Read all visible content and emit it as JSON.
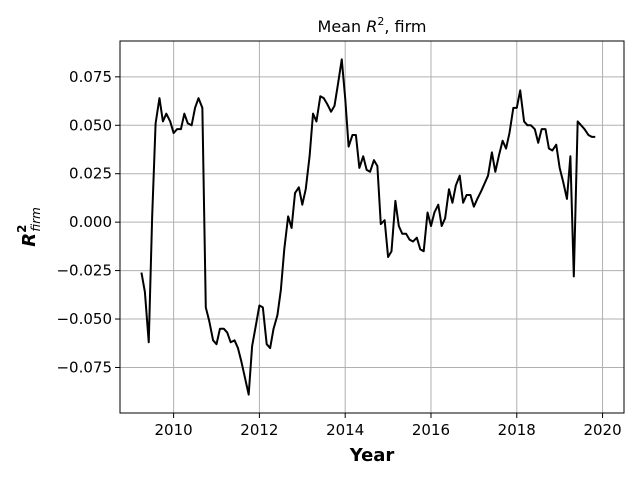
{
  "chart_data": {
    "type": "line",
    "title": "Mean R², firm",
    "title_parts": {
      "prefix": "Mean ",
      "symbol": "R",
      "superscript": "2",
      "suffix": ", firm"
    },
    "xlabel": "Year",
    "ylabel": "R²firm",
    "ylabel_parts": {
      "symbol": "R",
      "superscript": "2",
      "subscript": "firm"
    },
    "xlim": [
      2008.75,
      2020.5
    ],
    "ylim": [
      -0.0985,
      0.0935
    ],
    "grid": true,
    "xticks": [
      2010,
      2012,
      2014,
      2016,
      2018,
      2020
    ],
    "xtick_labels": [
      "2010",
      "2012",
      "2014",
      "2016",
      "2018",
      "2020"
    ],
    "yticks": [
      0.075,
      0.05,
      0.025,
      0.0,
      -0.025,
      -0.05,
      -0.075
    ],
    "ytick_labels": [
      "0.075",
      "0.050",
      "0.025",
      "0.000",
      "−0.025",
      "−0.050",
      "−0.075"
    ],
    "series": [
      {
        "color": "#000000",
        "points": [
          [
            2009.25,
            -0.026
          ],
          [
            2009.33,
            -0.036
          ],
          [
            2009.42,
            -0.062
          ],
          [
            2009.5,
            0.003
          ],
          [
            2009.58,
            0.051
          ],
          [
            2009.67,
            0.064
          ],
          [
            2009.75,
            0.052
          ],
          [
            2009.83,
            0.056
          ],
          [
            2009.92,
            0.052
          ],
          [
            2010.0,
            0.046
          ],
          [
            2010.08,
            0.048
          ],
          [
            2010.17,
            0.048
          ],
          [
            2010.25,
            0.056
          ],
          [
            2010.33,
            0.051
          ],
          [
            2010.42,
            0.05
          ],
          [
            2010.5,
            0.059
          ],
          [
            2010.58,
            0.064
          ],
          [
            2010.67,
            0.059
          ],
          [
            2010.75,
            -0.044
          ],
          [
            2010.83,
            -0.051
          ],
          [
            2010.92,
            -0.061
          ],
          [
            2011.0,
            -0.063
          ],
          [
            2011.08,
            -0.055
          ],
          [
            2011.17,
            -0.055
          ],
          [
            2011.25,
            -0.057
          ],
          [
            2011.33,
            -0.062
          ],
          [
            2011.42,
            -0.061
          ],
          [
            2011.5,
            -0.065
          ],
          [
            2011.58,
            -0.072
          ],
          [
            2011.67,
            -0.081
          ],
          [
            2011.75,
            -0.089
          ],
          [
            2011.83,
            -0.064
          ],
          [
            2011.92,
            -0.053
          ],
          [
            2012.0,
            -0.043
          ],
          [
            2012.08,
            -0.044
          ],
          [
            2012.17,
            -0.063
          ],
          [
            2012.25,
            -0.065
          ],
          [
            2012.33,
            -0.055
          ],
          [
            2012.42,
            -0.048
          ],
          [
            2012.5,
            -0.035
          ],
          [
            2012.58,
            -0.014
          ],
          [
            2012.67,
            0.003
          ],
          [
            2012.75,
            -0.003
          ],
          [
            2012.83,
            0.015
          ],
          [
            2012.92,
            0.018
          ],
          [
            2013.0,
            0.009
          ],
          [
            2013.08,
            0.017
          ],
          [
            2013.17,
            0.034
          ],
          [
            2013.25,
            0.056
          ],
          [
            2013.33,
            0.052
          ],
          [
            2013.42,
            0.065
          ],
          [
            2013.5,
            0.064
          ],
          [
            2013.58,
            0.061
          ],
          [
            2013.67,
            0.057
          ],
          [
            2013.75,
            0.06
          ],
          [
            2013.83,
            0.071
          ],
          [
            2013.92,
            0.084
          ],
          [
            2014.0,
            0.064
          ],
          [
            2014.08,
            0.039
          ],
          [
            2014.17,
            0.045
          ],
          [
            2014.25,
            0.045
          ],
          [
            2014.33,
            0.028
          ],
          [
            2014.42,
            0.034
          ],
          [
            2014.5,
            0.027
          ],
          [
            2014.58,
            0.026
          ],
          [
            2014.67,
            0.032
          ],
          [
            2014.75,
            0.029
          ],
          [
            2014.83,
            -0.001
          ],
          [
            2014.92,
            0.001
          ],
          [
            2015.0,
            -0.018
          ],
          [
            2015.08,
            -0.015
          ],
          [
            2015.17,
            0.011
          ],
          [
            2015.25,
            -0.002
          ],
          [
            2015.33,
            -0.006
          ],
          [
            2015.42,
            -0.006
          ],
          [
            2015.5,
            -0.009
          ],
          [
            2015.58,
            -0.01
          ],
          [
            2015.67,
            -0.008
          ],
          [
            2015.75,
            -0.014
          ],
          [
            2015.83,
            -0.015
          ],
          [
            2015.92,
            0.005
          ],
          [
            2016.0,
            -0.002
          ],
          [
            2016.08,
            0.005
          ],
          [
            2016.17,
            0.009
          ],
          [
            2016.25,
            -0.002
          ],
          [
            2016.33,
            0.002
          ],
          [
            2016.42,
            0.017
          ],
          [
            2016.5,
            0.01
          ],
          [
            2016.58,
            0.019
          ],
          [
            2016.67,
            0.024
          ],
          [
            2016.75,
            0.01
          ],
          [
            2016.83,
            0.014
          ],
          [
            2016.92,
            0.014
          ],
          [
            2017.0,
            0.008
          ],
          [
            2017.08,
            0.012
          ],
          [
            2017.17,
            0.016
          ],
          [
            2017.25,
            0.02
          ],
          [
            2017.33,
            0.024
          ],
          [
            2017.42,
            0.036
          ],
          [
            2017.5,
            0.026
          ],
          [
            2017.58,
            0.034
          ],
          [
            2017.67,
            0.042
          ],
          [
            2017.75,
            0.038
          ],
          [
            2017.83,
            0.046
          ],
          [
            2017.92,
            0.059
          ],
          [
            2018.0,
            0.059
          ],
          [
            2018.08,
            0.068
          ],
          [
            2018.17,
            0.052
          ],
          [
            2018.25,
            0.05
          ],
          [
            2018.33,
            0.05
          ],
          [
            2018.42,
            0.048
          ],
          [
            2018.5,
            0.041
          ],
          [
            2018.58,
            0.048
          ],
          [
            2018.67,
            0.048
          ],
          [
            2018.75,
            0.038
          ],
          [
            2018.83,
            0.037
          ],
          [
            2018.92,
            0.04
          ],
          [
            2019.0,
            0.028
          ],
          [
            2019.08,
            0.021
          ],
          [
            2019.17,
            0.012
          ],
          [
            2019.25,
            0.034
          ],
          [
            2019.33,
            -0.028
          ],
          [
            2019.42,
            0.052
          ],
          [
            2019.5,
            0.05
          ],
          [
            2019.58,
            0.048
          ],
          [
            2019.67,
            0.045
          ],
          [
            2019.75,
            0.044
          ],
          [
            2019.83,
            0.044
          ]
        ]
      }
    ]
  }
}
